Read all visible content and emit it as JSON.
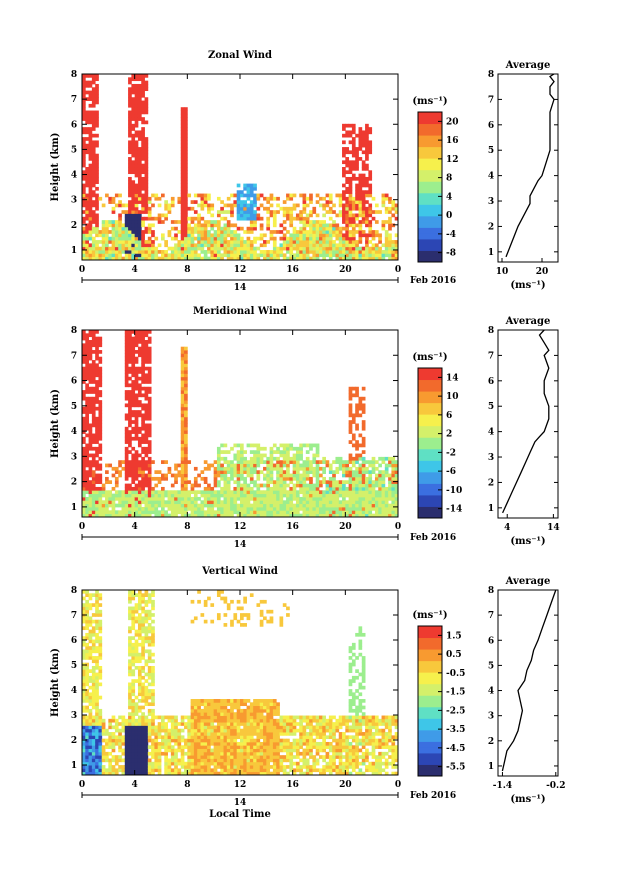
{
  "chart_data": [
    {
      "type": "heatmap",
      "title": "Zonal Wind",
      "ylabel": "Height (km)",
      "xlim": [
        0,
        24
      ],
      "ylim": [
        0.6,
        8
      ],
      "x_ticks": [
        "0",
        "4",
        "8",
        "12",
        "16",
        "20",
        "0"
      ],
      "y_ticks": [
        "1",
        "2",
        "3",
        "4",
        "5",
        "6",
        "7",
        "8"
      ],
      "day_label": "14",
      "date_label": "Feb 2016",
      "colorbar": {
        "unit": "(ms⁻¹)",
        "ticks": [
          "20",
          "16",
          "12",
          "8",
          "4",
          "0",
          "-4",
          "-8"
        ],
        "range": [
          -10,
          22
        ]
      },
      "average": {
        "title": "Average",
        "xlabel": "(ms⁻¹)",
        "x_ticks": [
          "10",
          "20"
        ],
        "xlim": [
          9,
          24
        ],
        "profile_x": [
          11,
          12,
          13,
          14,
          15,
          16,
          17,
          17,
          18,
          19,
          20,
          21,
          22,
          22,
          22,
          22,
          23,
          22,
          22,
          23,
          22,
          23
        ],
        "profile_y": [
          0.8,
          1.2,
          1.6,
          2.0,
          2.3,
          2.6,
          2.9,
          3.2,
          3.5,
          3.8,
          4.0,
          4.5,
          5.0,
          5.5,
          6.0,
          6.5,
          7.0,
          7.2,
          7.5,
          7.7,
          7.9,
          8.0
        ]
      }
    },
    {
      "type": "heatmap",
      "title": "Meridional Wind",
      "ylabel": "Height (km)",
      "xlim": [
        0,
        24
      ],
      "ylim": [
        0.6,
        8
      ],
      "x_ticks": [
        "0",
        "4",
        "8",
        "12",
        "16",
        "20",
        "0"
      ],
      "y_ticks": [
        "1",
        "2",
        "3",
        "4",
        "5",
        "6",
        "7",
        "8"
      ],
      "day_label": "14",
      "date_label": "Feb 2016",
      "colorbar": {
        "unit": "(ms⁻¹)",
        "ticks": [
          "14",
          "10",
          "6",
          "2",
          "-2",
          "-6",
          "-10",
          "-14"
        ],
        "range": [
          -16,
          16
        ]
      },
      "average": {
        "title": "Average",
        "xlabel": "(ms⁻¹)",
        "x_ticks": [
          "4",
          "14"
        ],
        "xlim": [
          2,
          15
        ],
        "profile_x": [
          3,
          4,
          5,
          6,
          7,
          8,
          9,
          10,
          11,
          12,
          13,
          13,
          12,
          12,
          13,
          12,
          13,
          12,
          11,
          12
        ],
        "profile_y": [
          0.8,
          1.2,
          1.6,
          2.0,
          2.4,
          2.8,
          3.2,
          3.6,
          3.8,
          4.0,
          4.5,
          5.0,
          5.5,
          6.0,
          6.5,
          7.0,
          7.2,
          7.5,
          7.8,
          8.0
        ]
      }
    },
    {
      "type": "heatmap",
      "title": "Vertical Wind",
      "ylabel": "Height (km)",
      "xlabel": "Local Time",
      "xlim": [
        0,
        24
      ],
      "ylim": [
        0.6,
        8
      ],
      "x_ticks": [
        "0",
        "4",
        "8",
        "12",
        "16",
        "20",
        "0"
      ],
      "y_ticks": [
        "1",
        "2",
        "3",
        "4",
        "5",
        "6",
        "7",
        "8"
      ],
      "day_label": "14",
      "date_label": "Feb 2016",
      "colorbar": {
        "unit": "(ms⁻¹)",
        "ticks": [
          "1.5",
          "0.5",
          "-0.5",
          "-1.5",
          "-2.5",
          "-3.5",
          "-4.5",
          "-5.5"
        ],
        "range": [
          -6,
          2
        ]
      },
      "average": {
        "title": "Average",
        "xlabel": "(ms⁻¹)",
        "x_ticks": [
          "-1.4",
          "-0.2"
        ],
        "xlim": [
          -1.5,
          -0.15
        ],
        "profile_x": [
          -1.4,
          -1.35,
          -1.3,
          -1.15,
          -1.05,
          -1.0,
          -0.95,
          -1.0,
          -1.05,
          -0.9,
          -0.85,
          -0.75,
          -0.7,
          -0.6,
          -0.5,
          -0.4,
          -0.3,
          -0.2
        ],
        "profile_y": [
          0.8,
          1.2,
          1.6,
          2.0,
          2.4,
          2.8,
          3.2,
          3.6,
          4.0,
          4.4,
          4.8,
          5.2,
          5.6,
          6.0,
          6.5,
          7.0,
          7.5,
          8.0
        ]
      }
    }
  ]
}
